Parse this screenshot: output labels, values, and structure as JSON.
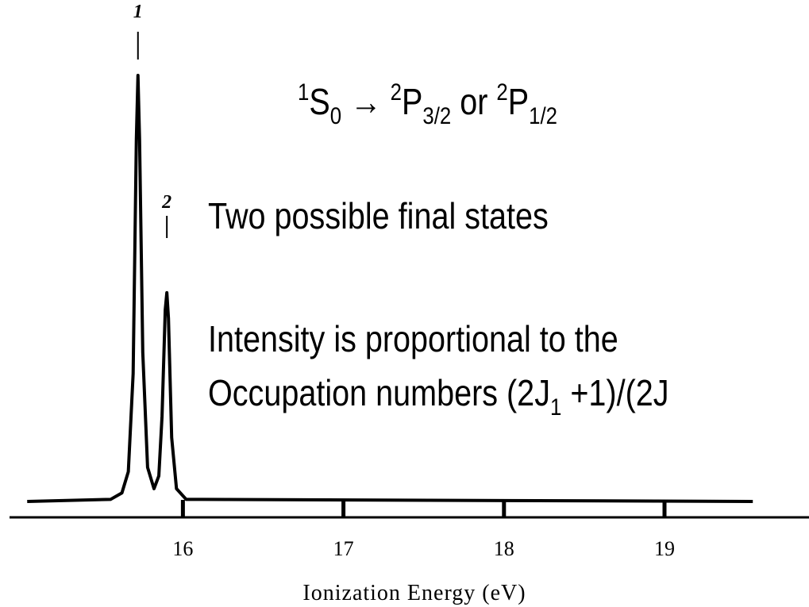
{
  "chart_data": {
    "type": "line",
    "x": [
      15.03,
      15.55,
      15.62,
      15.66,
      15.69,
      15.71,
      15.72,
      15.73,
      15.75,
      15.78,
      15.82,
      15.85,
      15.87,
      15.89,
      15.9,
      15.91,
      15.93,
      15.96,
      16.02,
      19.55
    ],
    "values": [
      0,
      0.005,
      0.02,
      0.07,
      0.3,
      0.85,
      1.0,
      0.85,
      0.35,
      0.08,
      0.03,
      0.06,
      0.2,
      0.45,
      0.49,
      0.43,
      0.15,
      0.03,
      0.005,
      0
    ],
    "color": "#000000",
    "xlim": [
      14.92,
      19.9
    ],
    "xticks": [
      16,
      17,
      18,
      19
    ],
    "ylim": [
      0,
      1.0
    ],
    "xlabel": "Ionization Energy (eV)",
    "peak_labels": [
      {
        "text": "1",
        "x": 15.72
      },
      {
        "text": "2",
        "x": 15.9
      }
    ],
    "transition": [
      "1",
      "S",
      "0",
      "→",
      "2",
      "P",
      "3/2",
      "or",
      "2",
      "P",
      "1/2"
    ],
    "line1": "Two possible final states",
    "line2": "Intensity is proportional to the",
    "line3": [
      "Occupation numbers (2J",
      "1",
      " +1)/(2J"
    ]
  }
}
